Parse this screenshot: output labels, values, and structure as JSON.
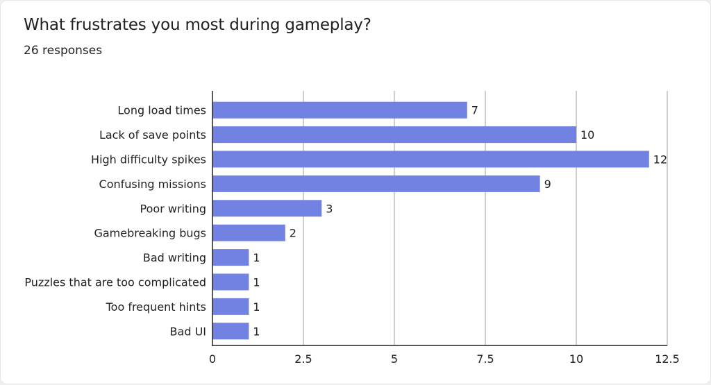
{
  "header": {
    "title": "What frustrates you most during gameplay?",
    "subtitle": "26 responses"
  },
  "colors": {
    "bar": "#7282e2",
    "grid": "#9e9e9e",
    "axis": "#202124"
  },
  "chart_data": {
    "type": "bar",
    "orientation": "horizontal",
    "title": "What frustrates you most during gameplay?",
    "subtitle": "26 responses",
    "categories": [
      "Long load times",
      "Lack of save points",
      "High difficulty spikes",
      "Confusing missions",
      "Poor writing",
      "Gamebreaking bugs",
      "Bad writing",
      "Puzzles that are too complicated",
      "Too frequent hints",
      "Bad UI"
    ],
    "values": [
      7,
      10,
      12,
      9,
      3,
      2,
      1,
      1,
      1,
      1
    ],
    "xlim": [
      0,
      12.5
    ],
    "xticks": [
      "0",
      "2.5",
      "5",
      "7.5",
      "10",
      "12.5"
    ],
    "tick_values": [
      0,
      2.5,
      5,
      7.5,
      10,
      12.5
    ],
    "grid": true,
    "data_labels": true
  }
}
